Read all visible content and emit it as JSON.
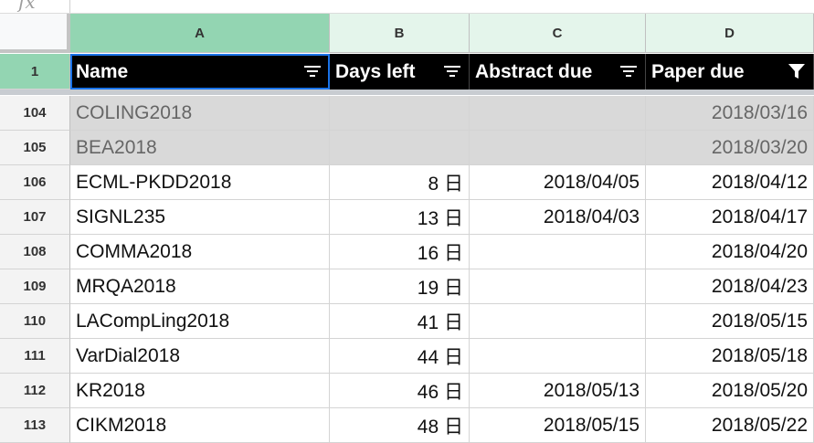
{
  "formula_bar": {
    "fx_label": "fx"
  },
  "columns": [
    "A",
    "B",
    "C",
    "D"
  ],
  "header": {
    "name": "Name",
    "days_left": "Days left",
    "abstract_due": "Abstract due",
    "paper_due": "Paper due",
    "row_number": "1"
  },
  "rows": [
    {
      "row": "104",
      "name": "COLING2018",
      "days": "",
      "abstract": "",
      "paper": "2018/03/16"
    },
    {
      "row": "105",
      "name": "BEA2018",
      "days": "",
      "abstract": "",
      "paper": "2018/03/20"
    },
    {
      "row": "106",
      "name": "ECML-PKDD2018",
      "days": "8 日",
      "abstract": "2018/04/05",
      "paper": "2018/04/12"
    },
    {
      "row": "107",
      "name": "SIGNL235",
      "days": "13 日",
      "abstract": "2018/04/03",
      "paper": "2018/04/17"
    },
    {
      "row": "108",
      "name": "COMMA2018",
      "days": "16 日",
      "abstract": "",
      "paper": "2018/04/20"
    },
    {
      "row": "109",
      "name": "MRQA2018",
      "days": "19 日",
      "abstract": "",
      "paper": "2018/04/23"
    },
    {
      "row": "110",
      "name": "LACompLing2018",
      "days": "41 日",
      "abstract": "",
      "paper": "2018/05/15"
    },
    {
      "row": "111",
      "name": "VarDial2018",
      "days": "44 日",
      "abstract": "",
      "paper": "2018/05/18"
    },
    {
      "row": "112",
      "name": "KR2018",
      "days": "46 日",
      "abstract": "2018/05/13",
      "paper": "2018/05/20"
    },
    {
      "row": "113",
      "name": "CIKM2018",
      "days": "48 日",
      "abstract": "2018/05/15",
      "paper": "2018/05/22"
    }
  ],
  "colors": {
    "selected_header": "#93d5b2",
    "column_header": "#e4f5eb",
    "header_row": "#000000",
    "past_row": "#d9d9d9",
    "active_border": "#1a73e8"
  },
  "icons": {
    "filter_inactive": "filter-lines-icon",
    "filter_active": "filter-funnel-icon"
  }
}
